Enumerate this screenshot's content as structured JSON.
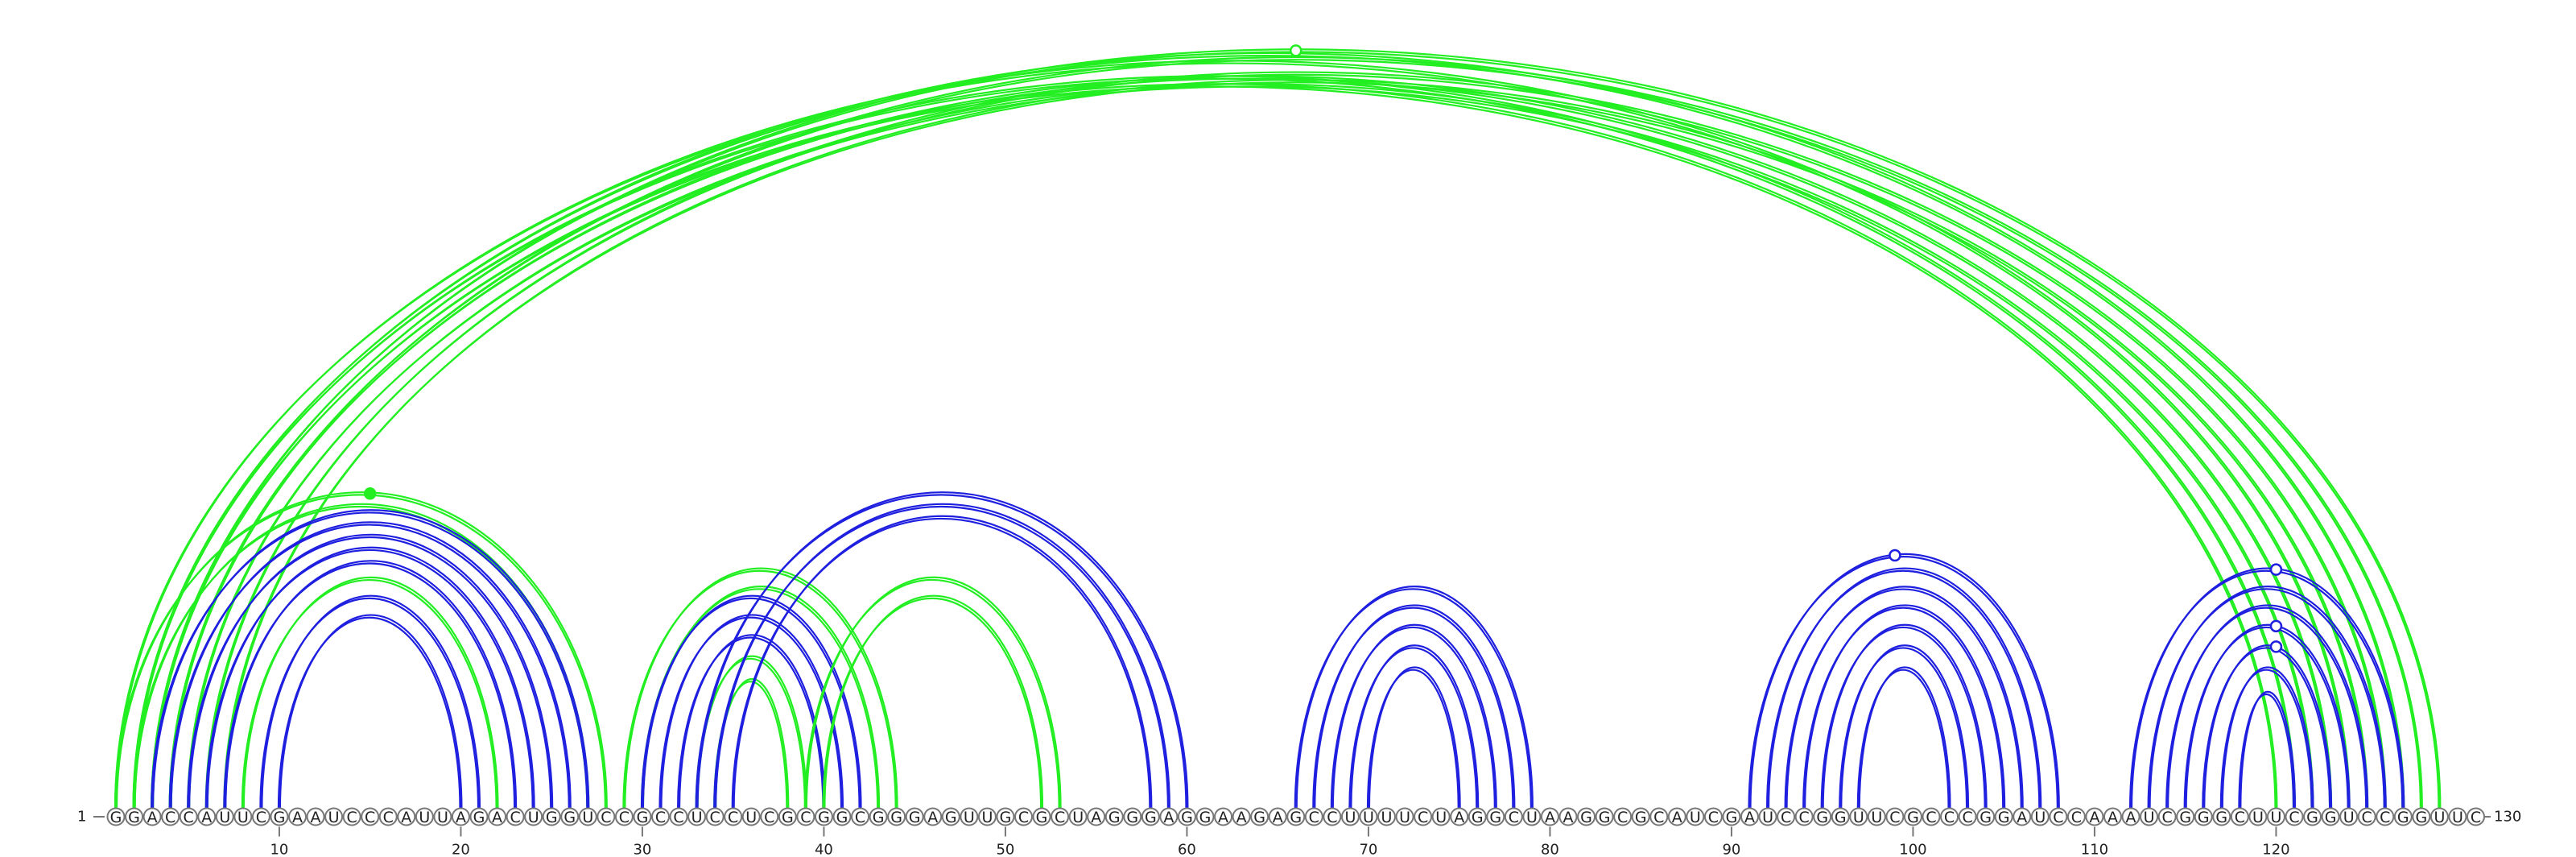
{
  "sequence": "GGACCAUUCGAAUCCCAUUAGACUGGUCCGCCUCCUCGCGGCGGGAGUUGCGCUAGGGAGGAAGAGCCUUUUCUAGGCUAAGGCGCAUCGAUCCGGUUCGCCCGGAUCCAAAUCGGGCUUCGGUCCGGUUC",
  "start_label": "1",
  "end_label": "130",
  "ticks": [
    "10",
    "20",
    "30",
    "40",
    "50",
    "60",
    "70",
    "80",
    "90",
    "100",
    "110",
    "120"
  ],
  "colors": {
    "blue": "#1f1fe0",
    "green": "#22ee22"
  },
  "arcs": [
    {
      "i": 2,
      "j": 121,
      "color": "green"
    },
    {
      "i": 3,
      "j": 120,
      "color": "green"
    },
    {
      "i": 4,
      "j": 123,
      "color": "green"
    },
    {
      "i": 5,
      "j": 122,
      "color": "green"
    },
    {
      "i": 3,
      "j": 129,
      "color": "green"
    },
    {
      "i": 4,
      "j": 128,
      "color": "green"
    },
    {
      "i": 6,
      "j": 126,
      "color": "green"
    },
    {
      "i": 7,
      "j": 125,
      "color": "green"
    },
    {
      "i": 1,
      "j": 124,
      "color": "green"
    },
    {
      "i": 2,
      "j": 127,
      "color": "green"
    },
    {
      "i": 1,
      "j": 28,
      "color": "green"
    },
    {
      "i": 2,
      "j": 27,
      "color": "green"
    },
    {
      "i": 3,
      "j": 27,
      "color": "blue"
    },
    {
      "i": 4,
      "j": 26,
      "color": "blue"
    },
    {
      "i": 5,
      "j": 25,
      "color": "blue"
    },
    {
      "i": 6,
      "j": 24,
      "color": "blue"
    },
    {
      "i": 7,
      "j": 23,
      "color": "blue"
    },
    {
      "i": 8,
      "j": 22,
      "color": "green"
    },
    {
      "i": 9,
      "j": 21,
      "color": "blue"
    },
    {
      "i": 10,
      "j": 20,
      "color": "blue"
    },
    {
      "i": 29,
      "j": 44,
      "color": "green"
    },
    {
      "i": 30,
      "j": 43,
      "color": "green"
    },
    {
      "i": 30,
      "j": 42,
      "color": "blue"
    },
    {
      "i": 31,
      "j": 41,
      "color": "blue"
    },
    {
      "i": 32,
      "j": 40,
      "color": "blue"
    },
    {
      "i": 33,
      "j": 39,
      "color": "green"
    },
    {
      "i": 34,
      "j": 38,
      "color": "green"
    },
    {
      "i": 33,
      "j": 60,
      "color": "blue"
    },
    {
      "i": 34,
      "j": 59,
      "color": "blue"
    },
    {
      "i": 35,
      "j": 58,
      "color": "blue"
    },
    {
      "i": 39,
      "j": 53,
      "color": "green"
    },
    {
      "i": 40,
      "j": 52,
      "color": "green"
    },
    {
      "i": 66,
      "j": 79,
      "color": "blue"
    },
    {
      "i": 67,
      "j": 78,
      "color": "blue"
    },
    {
      "i": 68,
      "j": 77,
      "color": "blue"
    },
    {
      "i": 69,
      "j": 76,
      "color": "blue"
    },
    {
      "i": 70,
      "j": 75,
      "color": "blue"
    },
    {
      "i": 91,
      "j": 108,
      "color": "blue"
    },
    {
      "i": 92,
      "j": 107,
      "color": "blue"
    },
    {
      "i": 93,
      "j": 106,
      "color": "blue"
    },
    {
      "i": 94,
      "j": 105,
      "color": "blue"
    },
    {
      "i": 95,
      "j": 104,
      "color": "blue"
    },
    {
      "i": 96,
      "j": 103,
      "color": "blue"
    },
    {
      "i": 97,
      "j": 102,
      "color": "blue"
    },
    {
      "i": 112,
      "j": 127,
      "color": "blue"
    },
    {
      "i": 113,
      "j": 126,
      "color": "blue"
    },
    {
      "i": 114,
      "j": 125,
      "color": "blue"
    },
    {
      "i": 115,
      "j": 124,
      "color": "blue"
    },
    {
      "i": 116,
      "j": 123,
      "color": "blue"
    },
    {
      "i": 117,
      "j": 122,
      "color": "blue"
    },
    {
      "i": 118,
      "j": 121,
      "color": "blue"
    }
  ],
  "markers": [
    {
      "pos": 66,
      "level": 1.0,
      "color": "green",
      "filled": false
    },
    {
      "pos": 15,
      "level": 0.95,
      "color": "green",
      "filled": true
    },
    {
      "pos": 99,
      "level": 1.0,
      "color": "blue",
      "filled": false
    },
    {
      "pos": 120,
      "level": 1.0,
      "color": "blue",
      "filled": false
    },
    {
      "pos": 120,
      "level": 0.52,
      "color": "blue",
      "filled": false
    },
    {
      "pos": 120,
      "level": 0.28,
      "color": "blue",
      "filled": false
    }
  ]
}
